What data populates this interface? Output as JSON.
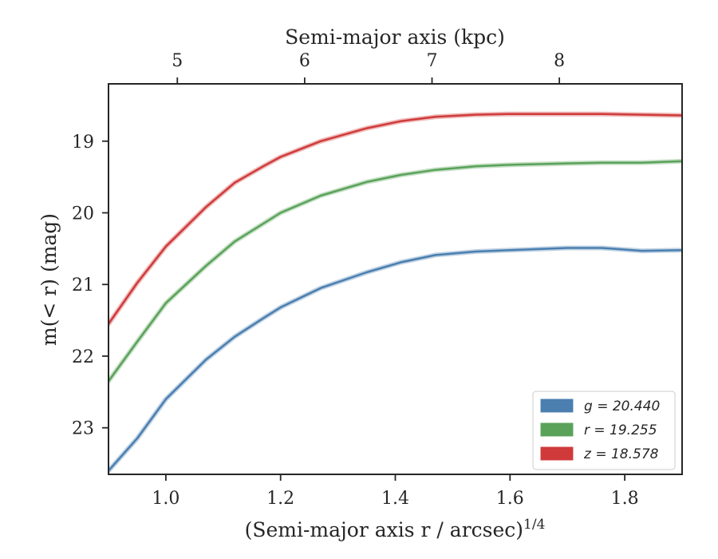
{
  "chart_data": {
    "type": "line",
    "xlabel": "(Semi-major axis r / arcsec)",
    "xlabel_sup": "1/4",
    "ylabel": "m(< r) (mag)",
    "top_xlabel": "Semi-major axis (kpc)",
    "xlim": [
      0.9,
      1.9
    ],
    "ylim": [
      23.65,
      18.2
    ],
    "x_ticks": [
      1.0,
      1.2,
      1.4,
      1.6,
      1.8
    ],
    "x_tick_labels": [
      "1.0",
      "1.2",
      "1.4",
      "1.6",
      "1.8"
    ],
    "y_ticks": [
      19,
      20,
      21,
      22,
      23
    ],
    "y_tick_labels": [
      "19",
      "20",
      "21",
      "22",
      "23"
    ],
    "top_ticks_kpc": [
      5,
      6,
      7,
      8
    ],
    "top_tick_labels": [
      "5",
      "6",
      "7",
      "8"
    ],
    "top_axis_map": {
      "kpc": [
        5,
        6,
        7,
        8
      ],
      "x": [
        1.02,
        1.242,
        1.464,
        1.686
      ]
    },
    "legend_position": "lower-right",
    "grid": false,
    "series": [
      {
        "name": "g = 20.440",
        "var": "g",
        "value": "20.440",
        "color": "#4a7fb0",
        "x": [
          0.9,
          0.95,
          1.0,
          1.07,
          1.12,
          1.17,
          1.2,
          1.27,
          1.35,
          1.41,
          1.47,
          1.54,
          1.6,
          1.7,
          1.76,
          1.83,
          1.9
        ],
        "y": [
          23.6,
          23.15,
          22.6,
          22.05,
          21.73,
          21.47,
          21.32,
          21.05,
          20.83,
          20.69,
          20.59,
          20.54,
          20.52,
          20.49,
          20.49,
          20.53,
          20.52
        ]
      },
      {
        "name": "r = 19.255",
        "var": "r",
        "value": "19.255",
        "color": "#5aa25a",
        "x": [
          0.9,
          0.95,
          1.0,
          1.07,
          1.12,
          1.17,
          1.2,
          1.27,
          1.35,
          1.41,
          1.47,
          1.54,
          1.6,
          1.7,
          1.76,
          1.83,
          1.9
        ],
        "y": [
          22.35,
          21.8,
          21.26,
          20.74,
          20.4,
          20.15,
          20.0,
          19.76,
          19.57,
          19.47,
          19.4,
          19.35,
          19.33,
          19.31,
          19.3,
          19.3,
          19.28
        ]
      },
      {
        "name": "z = 18.578",
        "var": "z",
        "value": "18.578",
        "color": "#d03a3a",
        "x": [
          0.9,
          0.95,
          1.0,
          1.07,
          1.12,
          1.17,
          1.2,
          1.27,
          1.35,
          1.41,
          1.47,
          1.54,
          1.6,
          1.7,
          1.76,
          1.83,
          1.9
        ],
        "y": [
          21.55,
          20.98,
          20.47,
          19.92,
          19.58,
          19.35,
          19.22,
          19.0,
          18.82,
          18.72,
          18.66,
          18.63,
          18.62,
          18.62,
          18.62,
          18.63,
          18.64
        ]
      }
    ]
  }
}
